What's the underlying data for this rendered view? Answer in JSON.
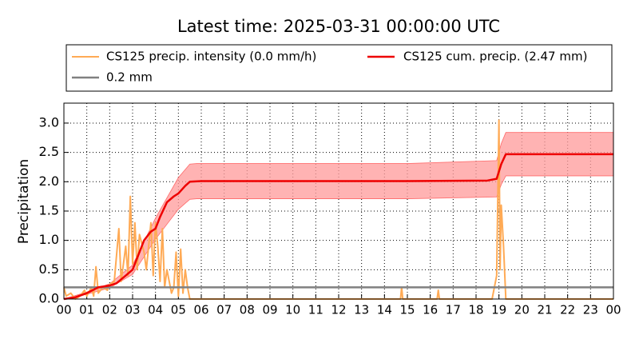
{
  "chart_data": {
    "type": "line",
    "title": "Latest time: 2025-03-31 00:00:00 UTC",
    "y_label": "Precipitation",
    "xlim": [
      0,
      24
    ],
    "ylim": [
      0,
      3.34
    ],
    "grid": true,
    "xticks": [
      {
        "value": 0,
        "label": "00"
      },
      {
        "value": 1,
        "label": "01"
      },
      {
        "value": 2,
        "label": "02"
      },
      {
        "value": 3,
        "label": "03"
      },
      {
        "value": 4,
        "label": "04"
      },
      {
        "value": 5,
        "label": "05"
      },
      {
        "value": 6,
        "label": "06"
      },
      {
        "value": 7,
        "label": "07"
      },
      {
        "value": 8,
        "label": "08"
      },
      {
        "value": 9,
        "label": "09"
      },
      {
        "value": 10,
        "label": "10"
      },
      {
        "value": 11,
        "label": "11"
      },
      {
        "value": 12,
        "label": "12"
      },
      {
        "value": 13,
        "label": "13"
      },
      {
        "value": 14,
        "label": "14"
      },
      {
        "value": 15,
        "label": "15"
      },
      {
        "value": 16,
        "label": "16"
      },
      {
        "value": 17,
        "label": "17"
      },
      {
        "value": 18,
        "label": "18"
      },
      {
        "value": 19,
        "label": "19"
      },
      {
        "value": 20,
        "label": "20"
      },
      {
        "value": 21,
        "label": "21"
      },
      {
        "value": 22,
        "label": "22"
      },
      {
        "value": 23,
        "label": "23"
      },
      {
        "value": 24,
        "label": "00"
      }
    ],
    "yticks": [
      {
        "value": 0,
        "label": "0.0"
      },
      0.5,
      {
        "value": 1,
        "label": "1.0"
      },
      1.5,
      {
        "value": 2,
        "label": "2.0"
      },
      2.5,
      {
        "value": 3,
        "label": "3.0"
      }
    ],
    "band": {
      "color": "#ff9a9a",
      "x": [
        0,
        1,
        2,
        3,
        4,
        5,
        5.5,
        5.8,
        10,
        15,
        18.9,
        19.1,
        19.3,
        24
      ],
      "lower": [
        0,
        0.08,
        0.19,
        0.42,
        1.02,
        1.53,
        1.7,
        1.71,
        1.71,
        1.71,
        1.74,
        1.95,
        2.1,
        2.1
      ],
      "upper": [
        0,
        0.12,
        0.26,
        0.58,
        1.38,
        2.07,
        2.3,
        2.31,
        2.31,
        2.31,
        2.36,
        2.65,
        2.84,
        2.84
      ]
    },
    "series": [
      {
        "name": "CS125 precip. intensity (0.0 mm/h)",
        "color": "#ffaa55",
        "width": 2,
        "x": [
          0,
          0.1,
          0.3,
          0.5,
          0.7,
          0.9,
          1.0,
          1.2,
          1.3,
          1.4,
          1.5,
          1.7,
          1.9,
          2.0,
          2.2,
          2.4,
          2.5,
          2.7,
          2.8,
          2.9,
          3.0,
          3.1,
          3.2,
          3.3,
          3.5,
          3.6,
          3.8,
          3.9,
          4.0,
          4.1,
          4.2,
          4.3,
          4.4,
          4.5,
          4.7,
          4.8,
          4.9,
          5.0,
          5.1,
          5.2,
          5.3,
          5.4,
          5.5,
          6,
          14.7,
          14.75,
          14.8,
          16.3,
          16.35,
          16.4,
          18.7,
          18.9,
          19.0,
          19.05,
          19.1,
          19.2,
          19.3,
          24
        ],
        "values": [
          0.2,
          0.05,
          0.1,
          0,
          0.05,
          0.15,
          0.05,
          0.2,
          0.05,
          0.55,
          0.1,
          0.2,
          0.15,
          0.25,
          0.3,
          1.2,
          0.3,
          0.9,
          0.4,
          1.75,
          0.6,
          1.3,
          0.5,
          1.1,
          0.8,
          0.5,
          1.3,
          0.4,
          1.3,
          0.9,
          0.3,
          1.2,
          0.2,
          0.5,
          0.1,
          0.2,
          0.8,
          0.05,
          0.85,
          0.1,
          0.5,
          0.2,
          0,
          0,
          0,
          0.2,
          0,
          0,
          0.15,
          0,
          0,
          0.4,
          3.05,
          0.5,
          1.6,
          0.9,
          0,
          0
        ]
      },
      {
        "name": "CS125 cum. precip. (2.47 mm)",
        "color": "#ee0000",
        "width": 2.5,
        "x": [
          0,
          0.5,
          1,
          1.5,
          2,
          2.3,
          2.7,
          3,
          3.2,
          3.5,
          3.8,
          4,
          4.2,
          4.5,
          4.8,
          5,
          5.3,
          5.5,
          6,
          10,
          15,
          18.5,
          18.9,
          19.1,
          19.3,
          24
        ],
        "values": [
          0,
          0.03,
          0.1,
          0.2,
          0.23,
          0.27,
          0.4,
          0.5,
          0.7,
          1.0,
          1.15,
          1.2,
          1.4,
          1.65,
          1.75,
          1.8,
          1.93,
          2.0,
          2.01,
          2.01,
          2.01,
          2.02,
          2.05,
          2.3,
          2.47,
          2.47
        ]
      },
      {
        "name": "0.2 mm",
        "color": "#808080",
        "width": 2.5,
        "x": [
          0,
          24
        ],
        "values": [
          0.2,
          0.2
        ]
      }
    ]
  }
}
